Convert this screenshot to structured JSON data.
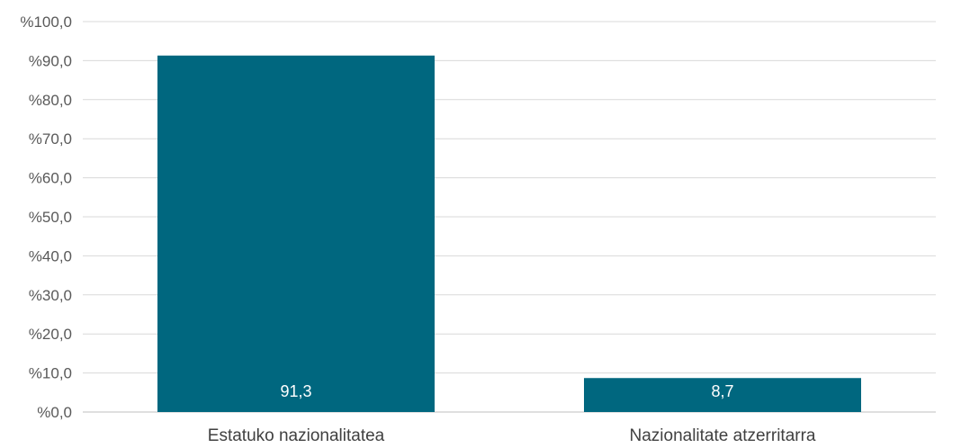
{
  "chart_data": {
    "type": "bar",
    "categories": [
      "Estatuko nazionalitatea",
      "Nazionalitate atzerritarra"
    ],
    "values": [
      91.3,
      8.7
    ],
    "data_labels": [
      "91,3",
      "8,7"
    ],
    "ylim": [
      0,
      100
    ],
    "y_ticks": [
      0,
      10,
      20,
      30,
      40,
      50,
      60,
      70,
      80,
      90,
      100
    ],
    "y_tick_labels": [
      "%0,0",
      "%10,0",
      "%20,0",
      "%30,0",
      "%40,0",
      "%50,0",
      "%60,0",
      "%70,0",
      "%80,0",
      "%90,0",
      "%100,0"
    ],
    "grid": true,
    "legend": "none",
    "bar_color": "#00677f",
    "title": "",
    "xlabel": "",
    "ylabel": ""
  }
}
